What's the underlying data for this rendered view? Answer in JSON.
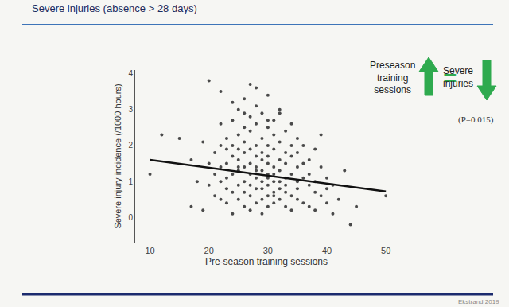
{
  "chart_data": {
    "type": "scatter",
    "title": "Severe injuries (absence > 28 days)",
    "x_label": "Pre-season training sessions",
    "y_label": "Severe injury incidence (/1000 hours)",
    "xlim": [
      7.5,
      52
    ],
    "ylim": [
      -0.7,
      4.1
    ],
    "xticks": [
      10,
      20,
      30,
      40,
      50
    ],
    "yticks": [
      0,
      1,
      2,
      3,
      4
    ],
    "grid": false,
    "annotations": {
      "increase": "Preseason training sessions",
      "equals": "=",
      "decrease": "Severe injuries",
      "p_value": "(P=0.015)",
      "source": "Ekstrand 2019"
    },
    "series": [
      {
        "type": "scatter",
        "color": "#4a4a4a",
        "marker": "circle",
        "x": [
          10,
          12,
          15,
          17,
          17,
          18,
          19,
          19,
          20,
          20,
          20,
          21,
          21,
          21,
          22,
          22,
          22,
          22,
          22,
          23,
          23,
          23,
          23,
          23,
          23,
          24,
          24,
          24,
          24,
          24,
          24,
          25,
          25,
          25,
          25,
          25,
          25,
          25,
          26,
          26,
          26,
          26,
          26,
          26,
          26,
          26,
          27,
          27,
          27,
          27,
          27,
          27,
          27,
          27,
          28,
          28,
          28,
          28,
          28,
          28,
          28,
          28,
          28,
          29,
          29,
          29,
          29,
          29,
          29,
          29,
          29,
          30,
          30,
          30,
          30,
          30,
          30,
          30,
          30,
          30,
          30,
          31,
          31,
          31,
          31,
          31,
          31,
          31,
          31,
          32,
          32,
          32,
          32,
          32,
          32,
          32,
          33,
          33,
          33,
          33,
          33,
          33,
          33,
          34,
          34,
          34,
          34,
          34,
          34,
          35,
          35,
          35,
          35,
          35,
          35,
          36,
          36,
          36,
          36,
          37,
          37,
          37,
          37,
          38,
          38,
          38,
          38,
          39,
          39,
          39,
          40,
          40,
          40,
          41,
          41,
          42,
          43,
          44,
          45,
          50,
          22,
          24,
          26,
          28,
          30,
          32,
          27,
          25,
          29,
          31
        ],
        "values": [
          1.2,
          2.3,
          2.2,
          0.3,
          1.6,
          1.0,
          0.2,
          2.1,
          1.5,
          0.9,
          3.8,
          1.8,
          1.2,
          0.6,
          2.6,
          1.4,
          1.0,
          0.5,
          2.0,
          1.9,
          1.5,
          0.8,
          2.2,
          1.1,
          0.4,
          2.7,
          1.7,
          1.2,
          0.7,
          2.0,
          0.1,
          3.0,
          1.9,
          1.3,
          0.9,
          0.5,
          2.3,
          1.6,
          2.5,
          1.0,
          1.8,
          0.3,
          1.4,
          2.1,
          0.7,
          3.3,
          2.8,
          1.2,
          0.6,
          1.9,
          1.5,
          0.9,
          2.4,
          0.2,
          3.1,
          1.7,
          1.1,
          2.0,
          0.4,
          1.4,
          2.6,
          0.8,
          1.3,
          2.2,
          1.6,
          0.5,
          1.0,
          2.9,
          1.3,
          0.1,
          1.8,
          2.5,
          1.1,
          0.6,
          1.5,
          2.0,
          0.3,
          0.9,
          3.4,
          1.2,
          1.7,
          2.3,
          1.0,
          0.7,
          1.4,
          1.9,
          0.4,
          2.7,
          1.2,
          0.8,
          1.6,
          2.1,
          0.5,
          1.0,
          2.9,
          1.3,
          1.8,
          0.7,
          1.1,
          2.4,
          0.3,
          1.5,
          0.9,
          1.2,
          2.0,
          0.6,
          1.7,
          0.2,
          2.6,
          1.0,
          1.4,
          0.5,
          2.2,
          0.8,
          1.8,
          1.1,
          0.4,
          1.5,
          2.0,
          0.9,
          1.6,
          0.3,
          1.2,
          0.7,
          1.9,
          1.0,
          0.2,
          1.4,
          0.6,
          2.3,
          1.1,
          0.4,
          0.8,
          0.9,
          0.1,
          0.5,
          1.3,
          -0.2,
          0.3,
          0.6,
          3.5,
          3.2,
          2.9,
          3.6,
          2.7,
          3.0,
          3.7,
          1.4,
          0.8,
          0.6
        ]
      },
      {
        "type": "line",
        "color": "#111111",
        "line_style": "solid",
        "x": [
          10,
          50
        ],
        "values": [
          1.6,
          0.72
        ]
      }
    ]
  }
}
